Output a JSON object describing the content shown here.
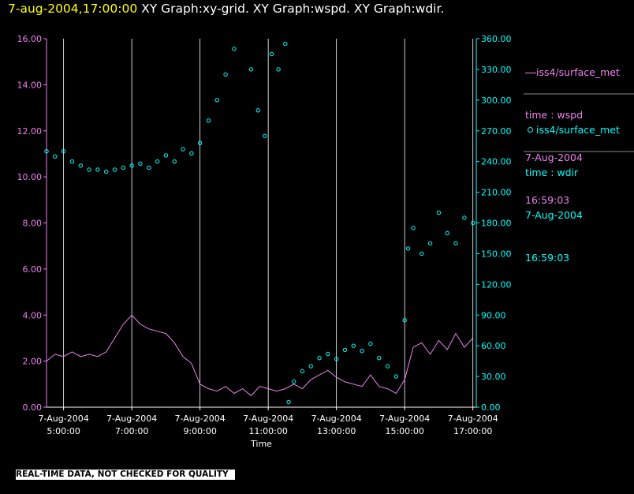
{
  "header": {
    "timestamp": "7-aug-2004,17:00:00",
    "graphs": "XY Graph:xy-grid.  XY Graph:wspd.  XY Graph:wdir."
  },
  "colors": {
    "background": "#000000",
    "wspd": "#ee82ee",
    "wdir": "#00ffff",
    "timestamp": "#ffff00",
    "grid": "#ffffff"
  },
  "legend": [
    {
      "line1": "iss4/surface_met",
      "line2": "time : wspd",
      "line3": "7-Aug-2004",
      "line4": "16:59:03",
      "color": "#ee82ee",
      "marker": "line"
    },
    {
      "line1": "iss4/surface_met",
      "line2": "time : wdir",
      "line3": "7-Aug-2004",
      "line4": "16:59:03",
      "color": "#00ffff",
      "marker": "circle"
    }
  ],
  "footer": "REAL-TIME DATA, NOT CHECKED FOR QUALITY",
  "chart_data": {
    "type": "line",
    "xlabel": "Time",
    "x_range_hours": [
      4.5,
      17.1
    ],
    "x_ticks": [
      {
        "hour": 5,
        "date": "7-Aug-2004",
        "time": "5:00:00"
      },
      {
        "hour": 7,
        "date": "7-Aug-2004",
        "time": "7:00:00"
      },
      {
        "hour": 9,
        "date": "7-Aug-2004",
        "time": "9:00:00"
      },
      {
        "hour": 11,
        "date": "7-Aug-2004",
        "time": "11:00:00"
      },
      {
        "hour": 13,
        "date": "7-Aug-2004",
        "time": "13:00:00"
      },
      {
        "hour": 15,
        "date": "7-Aug-2004",
        "time": "15:00:00"
      },
      {
        "hour": 17,
        "date": "7-Aug-2004",
        "time": "17:00:00"
      }
    ],
    "y_left": {
      "range": [
        0,
        16
      ],
      "ticks": [
        "0.00",
        "2.00",
        "4.00",
        "6.00",
        "8.00",
        "10.00",
        "12.00",
        "14.00",
        "16.00"
      ]
    },
    "y_right": {
      "range": [
        0,
        360
      ],
      "ticks": [
        "0.00",
        "30.00",
        "60.00",
        "90.00",
        "120.00",
        "150.00",
        "180.00",
        "210.00",
        "240.00",
        "270.00",
        "300.00",
        "330.00",
        "360.00"
      ]
    },
    "grid": "vertical lines at each x tick",
    "series": [
      {
        "name": "wspd",
        "axis": "left",
        "style": "line",
        "color": "#ee82ee",
        "points": [
          [
            4.5,
            2.0
          ],
          [
            4.75,
            2.3
          ],
          [
            5.0,
            2.2
          ],
          [
            5.25,
            2.4
          ],
          [
            5.5,
            2.2
          ],
          [
            5.75,
            2.3
          ],
          [
            6.0,
            2.2
          ],
          [
            6.25,
            2.4
          ],
          [
            6.5,
            3.0
          ],
          [
            6.75,
            3.6
          ],
          [
            7.0,
            4.0
          ],
          [
            7.25,
            3.6
          ],
          [
            7.5,
            3.4
          ],
          [
            7.75,
            3.3
          ],
          [
            8.0,
            3.2
          ],
          [
            8.25,
            2.8
          ],
          [
            8.5,
            2.2
          ],
          [
            8.75,
            1.9
          ],
          [
            9.0,
            1.0
          ],
          [
            9.25,
            0.8
          ],
          [
            9.5,
            0.7
          ],
          [
            9.75,
            0.9
          ],
          [
            10.0,
            0.6
          ],
          [
            10.25,
            0.8
          ],
          [
            10.5,
            0.5
          ],
          [
            10.75,
            0.9
          ],
          [
            11.0,
            0.8
          ],
          [
            11.25,
            0.7
          ],
          [
            11.5,
            0.8
          ],
          [
            11.75,
            1.0
          ],
          [
            12.0,
            0.8
          ],
          [
            12.25,
            1.2
          ],
          [
            12.5,
            1.4
          ],
          [
            12.75,
            1.6
          ],
          [
            13.0,
            1.3
          ],
          [
            13.25,
            1.1
          ],
          [
            13.5,
            1.0
          ],
          [
            13.75,
            0.9
          ],
          [
            14.0,
            1.4
          ],
          [
            14.25,
            0.9
          ],
          [
            14.5,
            0.8
          ],
          [
            14.75,
            0.6
          ],
          [
            15.0,
            1.2
          ],
          [
            15.25,
            2.6
          ],
          [
            15.5,
            2.8
          ],
          [
            15.75,
            2.3
          ],
          [
            16.0,
            2.9
          ],
          [
            16.25,
            2.5
          ],
          [
            16.5,
            3.2
          ],
          [
            16.75,
            2.6
          ],
          [
            17.0,
            3.0
          ]
        ]
      },
      {
        "name": "wdir",
        "axis": "right",
        "style": "scatter",
        "color": "#00ffff",
        "points": [
          [
            4.5,
            250
          ],
          [
            4.75,
            245
          ],
          [
            5.0,
            250
          ],
          [
            5.25,
            240
          ],
          [
            5.5,
            236
          ],
          [
            5.75,
            232
          ],
          [
            6.0,
            232
          ],
          [
            6.25,
            230
          ],
          [
            6.5,
            232
          ],
          [
            6.75,
            234
          ],
          [
            7.0,
            236
          ],
          [
            7.25,
            238
          ],
          [
            7.5,
            234
          ],
          [
            7.75,
            240
          ],
          [
            8.0,
            246
          ],
          [
            8.25,
            240
          ],
          [
            8.5,
            252
          ],
          [
            8.75,
            248
          ],
          [
            9.0,
            258
          ],
          [
            9.25,
            280
          ],
          [
            9.5,
            300
          ],
          [
            9.75,
            325
          ],
          [
            10.0,
            350
          ],
          [
            10.5,
            330
          ],
          [
            10.7,
            290
          ],
          [
            10.9,
            265
          ],
          [
            11.1,
            345
          ],
          [
            11.3,
            330
          ],
          [
            11.5,
            355
          ],
          [
            11.6,
            5
          ],
          [
            11.75,
            25
          ],
          [
            12.0,
            35
          ],
          [
            12.25,
            40
          ],
          [
            12.5,
            48
          ],
          [
            12.75,
            52
          ],
          [
            13.0,
            47
          ],
          [
            13.25,
            56
          ],
          [
            13.5,
            60
          ],
          [
            13.75,
            55
          ],
          [
            14.0,
            62
          ],
          [
            14.25,
            48
          ],
          [
            14.5,
            40
          ],
          [
            14.75,
            30
          ],
          [
            15.0,
            85
          ],
          [
            15.1,
            155
          ],
          [
            15.25,
            175
          ],
          [
            15.5,
            150
          ],
          [
            15.75,
            160
          ],
          [
            16.0,
            190
          ],
          [
            16.25,
            170
          ],
          [
            16.5,
            160
          ],
          [
            16.75,
            185
          ],
          [
            17.0,
            180
          ]
        ]
      }
    ]
  }
}
